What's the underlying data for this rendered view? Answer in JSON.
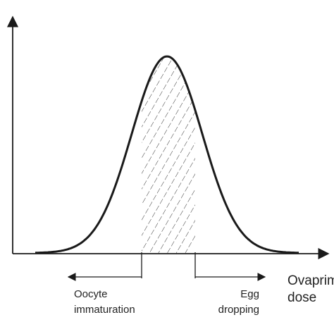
{
  "labels": {
    "left_line1": "Oocyte",
    "left_line2": "immaturation",
    "right_line1": "Egg",
    "right_line2": "dropping",
    "axis_line1": "Ovaprim",
    "axis_line2": "dose"
  },
  "colors": {
    "stroke": "#1a1a1a",
    "text": "#222222",
    "background": "#ffffff"
  }
}
